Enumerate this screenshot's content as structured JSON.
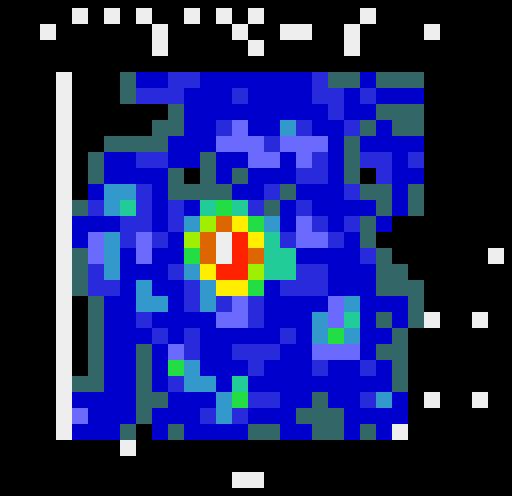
{
  "chart_data": {
    "type": "heatmap",
    "tick_labels": false,
    "zlim": [
      0,
      12
    ],
    "cells": [
      [
        0,
        0,
        0,
        0,
        12,
        0,
        12,
        0,
        12,
        0,
        0,
        12,
        0,
        12,
        0,
        12,
        0,
        0,
        0,
        0,
        0,
        0,
        12,
        0,
        0,
        0,
        0,
        0,
        0,
        0,
        0
      ],
      [
        0,
        0,
        12,
        0,
        0,
        0,
        0,
        0,
        0,
        12,
        0,
        0,
        0,
        0,
        12,
        0,
        0,
        12,
        12,
        0,
        0,
        12,
        0,
        0,
        0,
        0,
        12,
        0,
        0,
        0,
        0
      ],
      [
        0,
        0,
        0,
        0,
        0,
        0,
        0,
        0,
        0,
        12,
        0,
        0,
        0,
        0,
        0,
        12,
        0,
        0,
        0,
        0,
        0,
        12,
        0,
        0,
        0,
        0,
        0,
        0,
        0,
        0,
        0
      ],
      [
        0,
        0,
        0,
        0,
        0,
        0,
        0,
        0,
        0,
        0,
        0,
        0,
        0,
        0,
        0,
        0,
        0,
        0,
        0,
        0,
        0,
        0,
        0,
        0,
        0,
        0,
        0,
        0,
        0,
        0,
        0
      ],
      [
        0,
        0,
        0,
        12,
        0,
        0,
        0,
        1,
        2,
        2,
        3,
        3,
        2,
        2,
        2,
        2,
        2,
        2,
        2,
        3,
        1,
        1,
        2,
        1,
        1,
        1,
        0,
        0,
        0,
        0,
        0
      ],
      [
        0,
        0,
        0,
        12,
        0,
        0,
        0,
        1,
        3,
        3,
        3,
        2,
        2,
        2,
        3,
        2,
        2,
        2,
        2,
        3,
        3,
        2,
        3,
        2,
        2,
        2,
        0,
        0,
        0,
        0,
        0
      ],
      [
        0,
        0,
        0,
        12,
        0,
        0,
        0,
        0,
        0,
        0,
        1,
        2,
        2,
        2,
        2,
        2,
        2,
        2,
        2,
        2,
        3,
        2,
        2,
        1,
        1,
        1,
        0,
        0,
        0,
        0,
        0
      ],
      [
        0,
        0,
        0,
        12,
        0,
        0,
        0,
        0,
        0,
        1,
        1,
        2,
        2,
        3,
        4,
        2,
        2,
        5,
        3,
        2,
        2,
        3,
        1,
        2,
        1,
        1,
        0,
        0,
        0,
        0,
        0
      ],
      [
        0,
        0,
        0,
        12,
        0,
        0,
        1,
        1,
        1,
        1,
        2,
        2,
        2,
        4,
        4,
        4,
        3,
        4,
        4,
        4,
        2,
        1,
        2,
        2,
        2,
        2,
        0,
        0,
        0,
        0,
        0
      ],
      [
        0,
        0,
        0,
        12,
        0,
        1,
        2,
        2,
        3,
        3,
        2,
        2,
        1,
        2,
        2,
        4,
        4,
        2,
        4,
        3,
        2,
        1,
        3,
        3,
        2,
        3,
        0,
        0,
        0,
        0,
        0
      ],
      [
        0,
        0,
        0,
        12,
        0,
        1,
        2,
        2,
        2,
        2,
        1,
        0,
        1,
        2,
        1,
        2,
        2,
        2,
        3,
        3,
        2,
        1,
        0,
        3,
        2,
        2,
        0,
        0,
        0,
        0,
        0
      ],
      [
        0,
        0,
        0,
        12,
        0,
        2,
        5,
        5,
        3,
        2,
        1,
        1,
        1,
        1,
        2,
        2,
        3,
        1,
        2,
        2,
        2,
        3,
        1,
        1,
        2,
        1,
        0,
        0,
        0,
        0,
        0
      ],
      [
        0,
        0,
        0,
        12,
        1,
        3,
        5,
        6,
        3,
        2,
        3,
        2,
        6,
        7,
        6,
        3,
        1,
        2,
        3,
        2,
        2,
        2,
        2,
        1,
        2,
        1,
        0,
        0,
        0,
        0,
        0
      ],
      [
        0,
        0,
        0,
        12,
        2,
        2,
        2,
        3,
        3,
        2,
        3,
        5,
        8,
        10,
        9,
        7,
        5,
        2,
        4,
        3,
        2,
        3,
        1,
        2,
        0,
        0,
        0,
        0,
        0,
        0,
        0
      ],
      [
        0,
        0,
        0,
        12,
        2,
        4,
        5,
        3,
        4,
        3,
        2,
        8,
        10,
        12,
        11,
        9,
        6,
        3,
        4,
        4,
        3,
        2,
        1,
        0,
        0,
        0,
        0,
        0,
        0,
        0,
        0
      ],
      [
        0,
        0,
        0,
        12,
        1,
        4,
        5,
        2,
        4,
        2,
        2,
        7,
        10,
        12,
        11,
        10,
        6,
        6,
        2,
        2,
        2,
        2,
        3,
        1,
        0,
        0,
        0,
        0,
        0,
        0,
        12
      ],
      [
        0,
        0,
        0,
        12,
        1,
        3,
        5,
        2,
        2,
        2,
        3,
        5,
        9,
        11,
        11,
        8,
        6,
        6,
        3,
        3,
        2,
        2,
        2,
        1,
        1,
        0,
        0,
        0,
        0,
        0,
        0
      ],
      [
        0,
        0,
        0,
        12,
        1,
        3,
        3,
        2,
        5,
        2,
        2,
        3,
        5,
        9,
        9,
        7,
        2,
        3,
        3,
        3,
        2,
        2,
        2,
        1,
        1,
        1,
        0,
        0,
        0,
        0,
        0
      ],
      [
        0,
        0,
        0,
        12,
        0,
        1,
        2,
        2,
        5,
        5,
        2,
        3,
        5,
        3,
        4,
        3,
        2,
        2,
        2,
        2,
        4,
        5,
        2,
        2,
        2,
        1,
        0,
        0,
        0,
        0,
        0
      ],
      [
        0,
        0,
        0,
        12,
        0,
        1,
        2,
        2,
        3,
        2,
        2,
        2,
        2,
        4,
        4,
        3,
        2,
        2,
        2,
        5,
        4,
        6,
        2,
        1,
        2,
        1,
        12,
        0,
        0,
        12,
        0
      ],
      [
        0,
        0,
        0,
        12,
        0,
        1,
        2,
        2,
        2,
        3,
        2,
        3,
        2,
        2,
        2,
        2,
        2,
        3,
        2,
        5,
        7,
        5,
        2,
        2,
        1,
        0,
        0,
        0,
        0,
        0,
        0
      ],
      [
        0,
        0,
        0,
        12,
        0,
        1,
        2,
        2,
        1,
        2,
        4,
        3,
        2,
        2,
        3,
        3,
        3,
        2,
        2,
        4,
        4,
        4,
        2,
        1,
        1,
        0,
        0,
        0,
        0,
        0,
        0
      ],
      [
        0,
        0,
        0,
        12,
        0,
        1,
        2,
        2,
        1,
        2,
        7,
        5,
        2,
        2,
        2,
        3,
        2,
        2,
        2,
        3,
        2,
        2,
        3,
        2,
        1,
        0,
        0,
        0,
        0,
        0,
        0
      ],
      [
        0,
        0,
        0,
        12,
        1,
        1,
        2,
        2,
        1,
        2,
        3,
        5,
        5,
        2,
        6,
        2,
        2,
        2,
        2,
        2,
        2,
        2,
        2,
        2,
        1,
        0,
        0,
        0,
        0,
        0,
        0
      ],
      [
        0,
        0,
        0,
        12,
        2,
        2,
        2,
        2,
        1,
        1,
        2,
        2,
        2,
        5,
        7,
        3,
        3,
        2,
        2,
        1,
        2,
        2,
        3,
        5,
        2,
        0,
        12,
        0,
        0,
        12,
        0
      ],
      [
        0,
        0,
        0,
        12,
        4,
        2,
        2,
        2,
        1,
        2,
        2,
        2,
        3,
        5,
        3,
        2,
        2,
        2,
        1,
        1,
        1,
        2,
        2,
        2,
        2,
        0,
        0,
        0,
        0,
        0,
        0
      ],
      [
        0,
        0,
        0,
        12,
        2,
        2,
        2,
        1,
        0,
        2,
        1,
        2,
        2,
        2,
        2,
        1,
        1,
        2,
        2,
        1,
        1,
        2,
        1,
        2,
        12,
        0,
        0,
        0,
        0,
        0,
        0
      ],
      [
        0,
        0,
        0,
        0,
        0,
        0,
        0,
        12,
        0,
        0,
        0,
        0,
        0,
        0,
        0,
        0,
        0,
        0,
        0,
        0,
        0,
        0,
        0,
        0,
        0,
        0,
        0,
        0,
        0,
        0,
        0
      ],
      [
        0,
        0,
        0,
        0,
        0,
        0,
        0,
        0,
        0,
        0,
        0,
        0,
        0,
        0,
        0,
        0,
        0,
        0,
        0,
        0,
        0,
        0,
        0,
        0,
        0,
        0,
        0,
        0,
        0,
        0,
        0
      ],
      [
        0,
        0,
        0,
        0,
        0,
        0,
        0,
        0,
        0,
        0,
        0,
        0,
        0,
        0,
        12,
        12,
        0,
        0,
        0,
        0,
        0,
        0,
        0,
        0,
        0,
        0,
        0,
        0,
        0,
        0,
        0
      ]
    ]
  }
}
